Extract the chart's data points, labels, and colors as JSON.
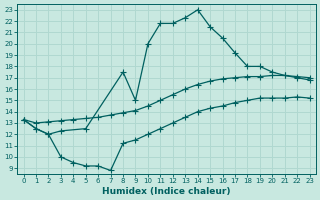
{
  "bg_color": "#c8e8e0",
  "grid_color": "#b0d8d0",
  "line_color": "#006060",
  "line_width": 0.9,
  "marker": "+",
  "marker_size": 4,
  "marker_lw": 0.8,
  "xlabel": "Humidex (Indice chaleur)",
  "xlabel_fontsize": 6.5,
  "xlabel_bold": true,
  "xlim": [
    -0.5,
    23.5
  ],
  "ylim": [
    8.5,
    23.5
  ],
  "xticks": [
    0,
    1,
    2,
    3,
    4,
    5,
    6,
    7,
    8,
    9,
    10,
    11,
    12,
    13,
    14,
    15,
    16,
    17,
    18,
    19,
    20,
    21,
    22,
    23
  ],
  "yticks": [
    9,
    10,
    11,
    12,
    13,
    14,
    15,
    16,
    17,
    18,
    19,
    20,
    21,
    22,
    23
  ],
  "tick_fontsize": 5.0,
  "curve_top": {
    "x": [
      0,
      1,
      2,
      3,
      5,
      8,
      9,
      10,
      11,
      12,
      13,
      14,
      15,
      16,
      17,
      18,
      19,
      20,
      21,
      22,
      23
    ],
    "y": [
      13.3,
      12.5,
      12.0,
      12.3,
      12.5,
      17.5,
      15.0,
      20.0,
      21.8,
      21.8,
      22.3,
      23.0,
      21.5,
      20.5,
      19.2,
      18.0,
      18.0,
      17.5,
      17.2,
      17.0,
      16.8
    ]
  },
  "curve_mid": {
    "x": [
      0,
      1,
      2,
      3,
      4,
      5,
      6,
      7,
      8,
      9,
      10,
      11,
      12,
      13,
      14,
      15,
      16,
      17,
      18,
      19,
      20,
      21,
      22,
      23
    ],
    "y": [
      13.3,
      13.0,
      13.1,
      13.2,
      13.3,
      13.4,
      13.5,
      13.7,
      13.9,
      14.1,
      14.5,
      15.0,
      15.5,
      16.0,
      16.4,
      16.7,
      16.9,
      17.0,
      17.1,
      17.1,
      17.2,
      17.2,
      17.1,
      17.0
    ]
  },
  "curve_bot": {
    "x": [
      0,
      1,
      2,
      3,
      4,
      5,
      6,
      7,
      8,
      9,
      10,
      11,
      12,
      13,
      14,
      15,
      16,
      17,
      18,
      19,
      20,
      21,
      22,
      23
    ],
    "y": [
      13.3,
      12.5,
      12.0,
      10.0,
      9.5,
      9.2,
      9.2,
      8.8,
      11.2,
      11.5,
      12.0,
      12.5,
      13.0,
      13.5,
      14.0,
      14.3,
      14.5,
      14.8,
      15.0,
      15.2,
      15.2,
      15.2,
      15.3,
      15.2
    ]
  }
}
